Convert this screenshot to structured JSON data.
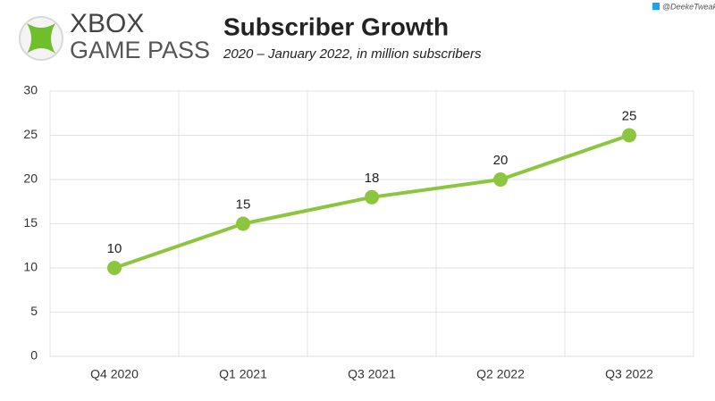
{
  "logo": {
    "line1": "XBOX",
    "line2": "GAME PASS"
  },
  "credit": "@DeekeTweak",
  "chart_data": {
    "type": "line",
    "title": "Subscriber Growth",
    "subtitle": "2020 – January 2022, in million subscribers",
    "categories": [
      "Q4 2020",
      "Q1 2021",
      "Q3 2021",
      "Q2 2022",
      "Q3 2022"
    ],
    "values": [
      10,
      15,
      18,
      20,
      25
    ],
    "color": "#8cc63f",
    "ylim": [
      0,
      30
    ],
    "yticks": [
      0,
      5,
      10,
      15,
      20,
      25,
      30
    ],
    "grid": true
  }
}
